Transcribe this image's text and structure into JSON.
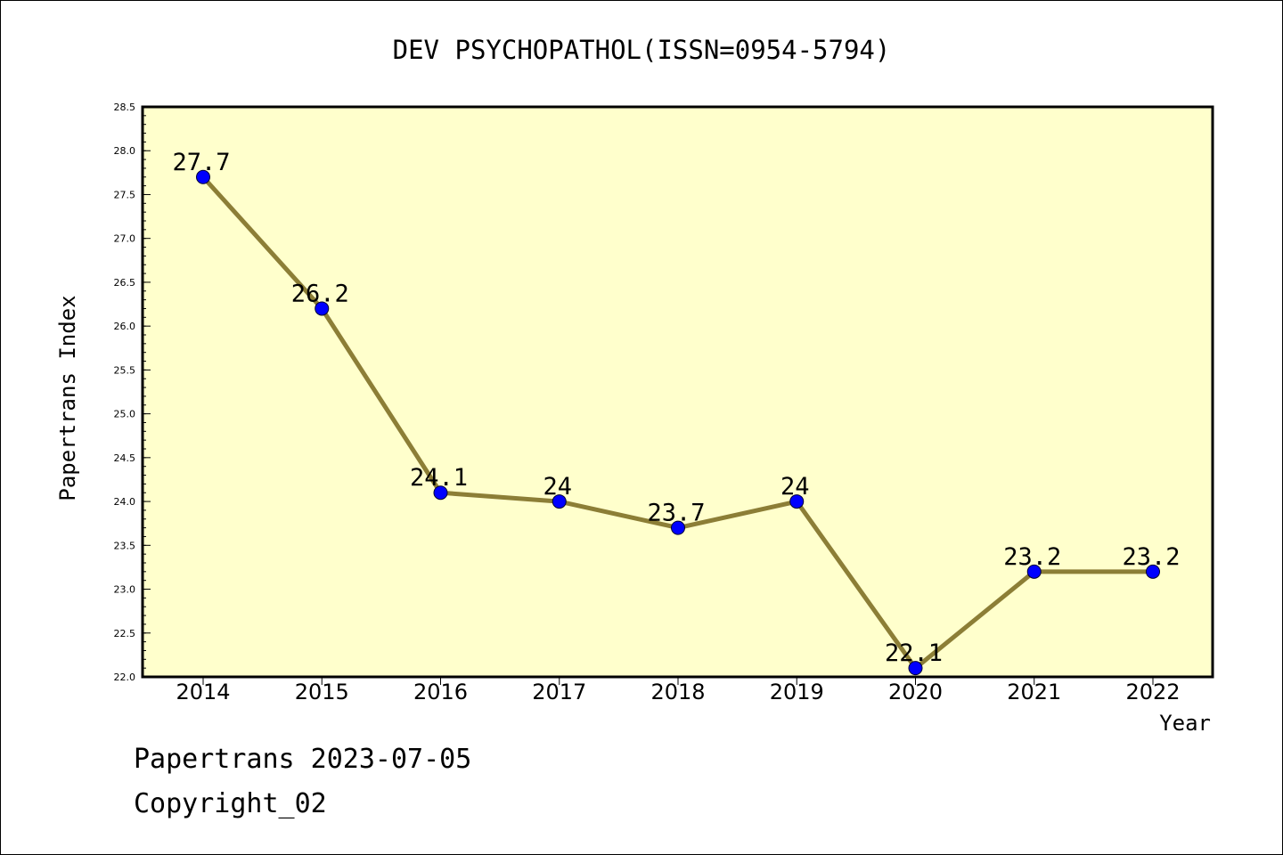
{
  "chart_data": {
    "type": "line",
    "title": "DEV PSYCHOPATHOL(ISSN=0954-5794)",
    "xlabel": "Year",
    "ylabel": "Papertrans Index",
    "categories": [
      "2014",
      "2015",
      "2016",
      "2017",
      "2018",
      "2019",
      "2020",
      "2021",
      "2022"
    ],
    "values": [
      27.7,
      26.2,
      24.1,
      24.0,
      23.7,
      24.0,
      22.1,
      23.2,
      23.2
    ],
    "value_labels": [
      "27.7",
      "26.2",
      "24.1",
      "24",
      "23.7",
      "24",
      "22.1",
      "23.2",
      "23.2"
    ],
    "ylim": [
      22.0,
      28.5
    ],
    "yticks": [
      "22.0",
      "22.5",
      "23.0",
      "23.5",
      "24.0",
      "24.5",
      "25.0",
      "25.5",
      "26.0",
      "26.5",
      "27.0",
      "27.5",
      "28.0",
      "28.5"
    ],
    "grid": false,
    "colors": {
      "plot_background": "#ffffcc",
      "line": "#8c7e36",
      "marker": "#0000ff"
    }
  },
  "footer": {
    "line1": "Papertrans 2023-07-05",
    "line2": "Copyright_02"
  }
}
